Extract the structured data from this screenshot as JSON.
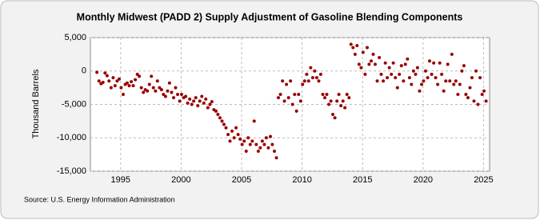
{
  "chart_data": {
    "type": "scatter",
    "title": "Monthly Midwest (PADD 2) Supply Adjustment of Gasoline Blending Components",
    "y_label": "Thousand Barrels",
    "source": "Source: U.S. Energy Information Administration",
    "xlim": [
      1992.5,
      2025.5
    ],
    "xticks": [
      1995,
      2000,
      2005,
      2010,
      2015,
      2020,
      2025
    ],
    "ylim": [
      -15000,
      5000
    ],
    "yticks": [
      {
        "value": -15000,
        "label": "-15,000"
      },
      {
        "value": -10000,
        "label": "-10,000"
      },
      {
        "value": -5000,
        "label": "-5,000"
      },
      0,
      {
        "value": 5000,
        "label": "5,000"
      }
    ],
    "grid": true,
    "series": [
      {
        "name": "Supply Adjustment",
        "color": "#990000",
        "x": [
          1993.04,
          1993.21,
          1993.38,
          1993.54,
          1993.71,
          1993.88,
          1994.04,
          1994.21,
          1994.38,
          1994.54,
          1994.71,
          1994.88,
          1995.04,
          1995.21,
          1995.38,
          1995.54,
          1995.71,
          1995.88,
          1996.04,
          1996.21,
          1996.38,
          1996.54,
          1996.71,
          1996.88,
          1997.04,
          1997.21,
          1997.38,
          1997.54,
          1997.71,
          1997.88,
          1998.04,
          1998.21,
          1998.38,
          1998.54,
          1998.71,
          1998.88,
          1999.04,
          1999.21,
          1999.38,
          1999.54,
          1999.71,
          1999.88,
          2000.04,
          2000.21,
          2000.38,
          2000.54,
          2000.71,
          2000.88,
          2001.04,
          2001.21,
          2001.38,
          2001.54,
          2001.71,
          2001.88,
          2002.04,
          2002.21,
          2002.38,
          2002.54,
          2002.71,
          2002.88,
          2003.04,
          2003.21,
          2003.38,
          2003.54,
          2003.71,
          2003.88,
          2004.04,
          2004.21,
          2004.38,
          2004.54,
          2004.71,
          2004.88,
          2005.04,
          2005.21,
          2005.38,
          2005.54,
          2005.71,
          2005.88,
          2006.04,
          2006.21,
          2006.38,
          2006.54,
          2006.71,
          2006.88,
          2007.04,
          2007.21,
          2007.38,
          2007.54,
          2007.71,
          2007.88,
          2008.04,
          2008.21,
          2008.38,
          2008.54,
          2008.71,
          2008.88,
          2009.04,
          2009.21,
          2009.38,
          2009.54,
          2009.71,
          2009.88,
          2010.04,
          2010.21,
          2010.38,
          2010.54,
          2010.71,
          2010.88,
          2011.04,
          2011.21,
          2011.38,
          2011.54,
          2011.71,
          2011.88,
          2012.04,
          2012.21,
          2012.38,
          2012.54,
          2012.71,
          2012.88,
          2013.04,
          2013.21,
          2013.38,
          2013.54,
          2013.71,
          2013.88,
          2014.04,
          2014.21,
          2014.38,
          2014.54,
          2014.71,
          2014.88,
          2015.04,
          2015.21,
          2015.38,
          2015.54,
          2015.71,
          2015.88,
          2016.04,
          2016.21,
          2016.38,
          2016.54,
          2016.71,
          2016.88,
          2017.04,
          2017.21,
          2017.38,
          2017.54,
          2017.71,
          2017.88,
          2018.04,
          2018.21,
          2018.38,
          2018.54,
          2018.71,
          2018.88,
          2019.04,
          2019.21,
          2019.38,
          2019.54,
          2019.71,
          2019.88,
          2020.04,
          2020.21,
          2020.38,
          2020.54,
          2020.71,
          2020.88,
          2021.04,
          2021.21,
          2021.38,
          2021.54,
          2021.71,
          2021.88,
          2022.04,
          2022.21,
          2022.38,
          2022.54,
          2022.71,
          2022.88,
          2023.04,
          2023.21,
          2023.38,
          2023.54,
          2023.71,
          2023.88,
          2024.04,
          2024.21,
          2024.38,
          2024.54,
          2024.71,
          2024.88,
          2025.04,
          2025.21
        ],
        "values": [
          -200,
          -1500,
          -1900,
          -1700,
          -300,
          -700,
          -1500,
          -2500,
          -1000,
          -2200,
          -1500,
          -1200,
          -2500,
          -3500,
          -2000,
          -1800,
          -2200,
          -1600,
          -2200,
          -1300,
          -500,
          -800,
          -2500,
          -3200,
          -2800,
          -3000,
          -2000,
          -800,
          -2500,
          -3000,
          -1500,
          -2500,
          -2800,
          -3500,
          -3800,
          -3000,
          -1800,
          -3200,
          -4000,
          -2500,
          -3500,
          -4500,
          -3500,
          -4000,
          -3800,
          -4800,
          -4200,
          -5000,
          -4500,
          -4000,
          -5200,
          -4500,
          -3800,
          -4800,
          -4200,
          -5500,
          -5000,
          -4600,
          -5800,
          -6000,
          -6500,
          -7000,
          -7500,
          -8000,
          -8500,
          -9500,
          -10500,
          -9000,
          -10000,
          -8500,
          -9500,
          -10200,
          -11000,
          -10500,
          -12000,
          -10000,
          -11000,
          -10500,
          -7500,
          -11000,
          -12000,
          -11500,
          -10500,
          -11000,
          -10000,
          -11500,
          -9800,
          -11000,
          -12000,
          -13000,
          -4000,
          -3500,
          -1500,
          -4500,
          -2000,
          -4000,
          -1500,
          -5000,
          -3500,
          -6000,
          -3500,
          -4500,
          -2000,
          -1500,
          -500,
          -1500,
          500,
          -1000,
          0,
          -1000,
          -1500,
          -500,
          -3500,
          -4000,
          -3500,
          -5000,
          -4500,
          -6500,
          -7000,
          -4500,
          -3500,
          -5200,
          -4500,
          -5500,
          -3500,
          -4000,
          4000,
          3500,
          2500,
          3800,
          1000,
          500,
          2800,
          -500,
          3500,
          1000,
          1500,
          2500,
          1000,
          -1500,
          2000,
          -500,
          -1500,
          1200,
          -1000,
          500,
          -500,
          1200,
          -1000,
          -2500,
          -500,
          800,
          -1500,
          1000,
          1800,
          -1000,
          -2000,
          0,
          -500,
          500,
          -3000,
          -2000,
          -1500,
          0,
          -1000,
          1500,
          -500,
          1200,
          -1000,
          -2000,
          1200,
          -500,
          -3000,
          -1500,
          1000,
          -1500,
          2500,
          -2000,
          -1500,
          -3500,
          -2000,
          0,
          800,
          -3500,
          -4000,
          -2500,
          -1000,
          -4500,
          0,
          -5000,
          -1000,
          -3500,
          -3000,
          -4500
        ]
      }
    ]
  }
}
